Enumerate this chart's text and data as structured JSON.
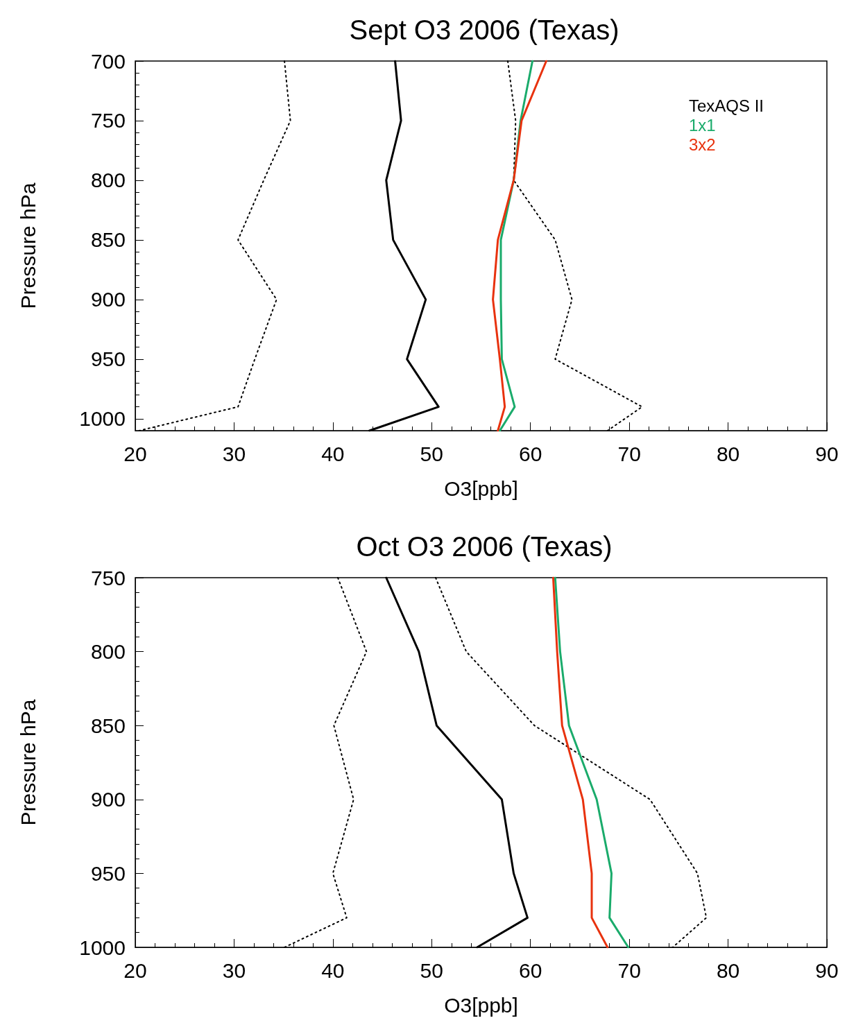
{
  "chart_data": [
    {
      "type": "line",
      "title": "Sept O3 2006 (Texas)",
      "xlabel": "O3[ppb]",
      "ylabel": "Pressure hPa",
      "xlim": [
        20,
        90
      ],
      "xticks": [
        20,
        30,
        40,
        50,
        60,
        70,
        80,
        90
      ],
      "ylim": [
        1010,
        700
      ],
      "yticks": [
        700,
        750,
        800,
        850,
        900,
        950,
        1000
      ],
      "grid": false,
      "legend": "top right",
      "marker": "none",
      "series": [
        {
          "name": "TexAQS II",
          "color": "#000000",
          "line_style": "solid",
          "x": [
            46.3,
            46.9,
            45.4,
            46.1,
            49.4,
            47.5,
            50.7,
            43.7
          ],
          "values": [
            700,
            750,
            800,
            850,
            900,
            950,
            990,
            1010
          ]
        },
        {
          "color": "#000000",
          "line_style": "dotted",
          "x": [
            35.1,
            35.7,
            33.0,
            30.4,
            34.3,
            32.1,
            30.4,
            20.4
          ],
          "values": [
            700,
            750,
            800,
            850,
            900,
            950,
            990,
            1010
          ]
        },
        {
          "color": "#000000",
          "line_style": "dotted",
          "x": [
            57.7,
            58.5,
            58.3,
            62.5,
            64.2,
            62.5,
            71.3,
            67.8
          ],
          "values": [
            700,
            750,
            800,
            850,
            900,
            950,
            990,
            1010
          ]
        },
        {
          "name": "1x1",
          "color": "#1aab6b",
          "line_style": "solid",
          "x": [
            60.2,
            59.0,
            58.3,
            57.0,
            57.0,
            57.1,
            58.4,
            56.9
          ],
          "values": [
            700,
            750,
            800,
            850,
            900,
            950,
            990,
            1010
          ]
        },
        {
          "name": "3x2",
          "color": "#e8320e",
          "line_style": "solid",
          "x": [
            61.6,
            59.1,
            58.3,
            56.7,
            56.2,
            56.9,
            57.4,
            56.7
          ],
          "values": [
            700,
            750,
            800,
            850,
            900,
            950,
            990,
            1010
          ]
        }
      ]
    },
    {
      "type": "line",
      "title": "Oct O3 2006 (Texas)",
      "xlabel": "O3[ppb]",
      "ylabel": "Pressure hPa",
      "xlim": [
        20,
        90
      ],
      "xticks": [
        20,
        30,
        40,
        50,
        60,
        70,
        80,
        90
      ],
      "ylim": [
        1000,
        750
      ],
      "yticks": [
        750,
        800,
        850,
        900,
        950,
        1000
      ],
      "grid": false,
      "legend": false,
      "marker": "none",
      "series": [
        {
          "color": "#000000",
          "line_style": "solid",
          "x": [
            45.4,
            48.7,
            50.5,
            57.1,
            58.3,
            59.7,
            54.6
          ],
          "values": [
            750,
            800,
            850,
            900,
            950,
            980,
            1000
          ]
        },
        {
          "color": "#000000",
          "line_style": "dotted",
          "x": [
            40.5,
            43.4,
            40.1,
            42.1,
            40.0,
            41.4,
            35.1
          ],
          "values": [
            750,
            800,
            850,
            900,
            950,
            980,
            1000
          ]
        },
        {
          "color": "#000000",
          "line_style": "dotted",
          "x": [
            50.4,
            53.5,
            60.4,
            72.1,
            76.9,
            77.8,
            74.4
          ],
          "values": [
            750,
            800,
            850,
            900,
            950,
            980,
            1000
          ]
        },
        {
          "color": "#1aab6b",
          "line_style": "solid",
          "x": [
            62.5,
            63.0,
            63.9,
            66.7,
            68.2,
            68.0,
            69.9
          ],
          "values": [
            750,
            800,
            850,
            900,
            950,
            980,
            1000
          ]
        },
        {
          "color": "#e8320e",
          "line_style": "solid",
          "x": [
            62.3,
            62.7,
            63.2,
            65.3,
            66.2,
            66.2,
            67.8
          ],
          "values": [
            750,
            800,
            850,
            900,
            950,
            980,
            1000
          ]
        }
      ]
    }
  ]
}
